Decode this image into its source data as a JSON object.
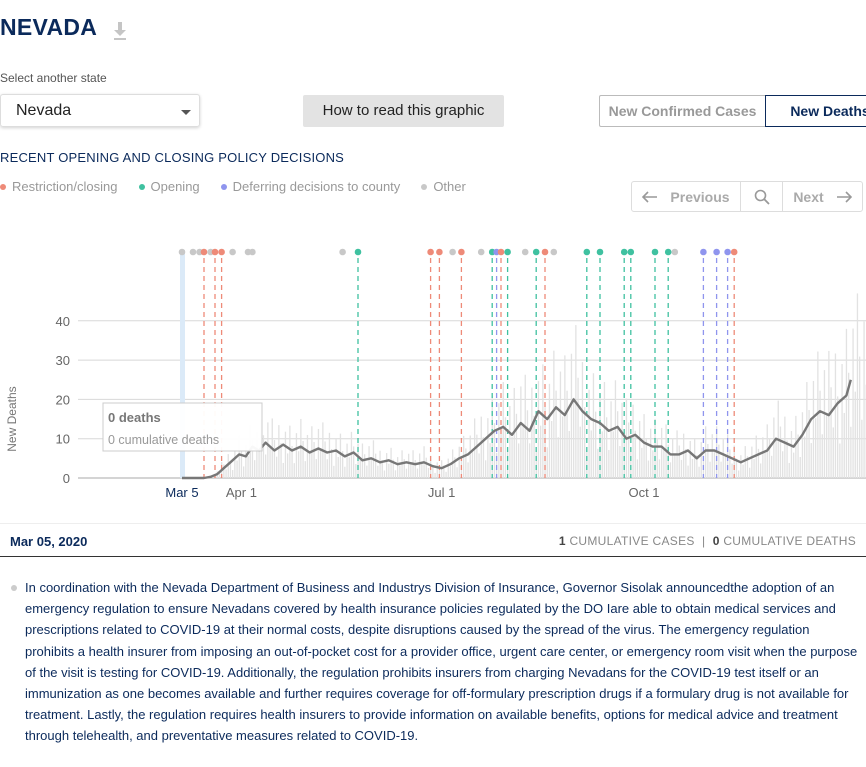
{
  "header": {
    "state_title": "NEVADA"
  },
  "selector": {
    "label": "Select another state",
    "value": "Nevada"
  },
  "how_to_button": "How to read this graphic",
  "toggle": {
    "cases_label": "New Confirmed Cases",
    "deaths_label": "New Deaths"
  },
  "section_title": "RECENT OPENING AND CLOSING POLICY DECISIONS",
  "legend": [
    {
      "label": "Restriction/closing",
      "color": "#ee8a78"
    },
    {
      "label": "Opening",
      "color": "#3fc1a0"
    },
    {
      "label": "Deferring decisions to county",
      "color": "#8f95ee"
    },
    {
      "label": "Other",
      "color": "#c8c8c8"
    }
  ],
  "nav": {
    "previous": "Previous",
    "next": "Next"
  },
  "tooltip": {
    "deaths": "0 deaths",
    "cumulative": "0 cumulative deaths"
  },
  "chart_data": {
    "type": "bar",
    "ylabel": "New Deaths",
    "ylim": [
      0,
      48
    ],
    "yticks": [
      0,
      10,
      20,
      30,
      40
    ],
    "xticks": [
      {
        "day": 0,
        "label": "Mar 5"
      },
      {
        "day": 27,
        "label": "Apr 1"
      },
      {
        "day": 118,
        "label": "Jul 1"
      },
      {
        "day": 210,
        "label": "Oct 1"
      }
    ],
    "start_date": "2020-03-05",
    "selected_day": 0,
    "avg_series": [
      {
        "day": 0,
        "v": 0
      },
      {
        "day": 10,
        "v": 0
      },
      {
        "day": 13,
        "v": 0.3
      },
      {
        "day": 16,
        "v": 1
      },
      {
        "day": 19,
        "v": 2.5
      },
      {
        "day": 22,
        "v": 4
      },
      {
        "day": 26,
        "v": 6
      },
      {
        "day": 29,
        "v": 5.5
      },
      {
        "day": 32,
        "v": 8
      },
      {
        "day": 35,
        "v": 7
      },
      {
        "day": 38,
        "v": 9
      },
      {
        "day": 42,
        "v": 7
      },
      {
        "day": 46,
        "v": 8.5
      },
      {
        "day": 50,
        "v": 7
      },
      {
        "day": 54,
        "v": 8
      },
      {
        "day": 58,
        "v": 6.5
      },
      {
        "day": 62,
        "v": 7.5
      },
      {
        "day": 66,
        "v": 6.5
      },
      {
        "day": 70,
        "v": 7
      },
      {
        "day": 74,
        "v": 5.5
      },
      {
        "day": 78,
        "v": 6.5
      },
      {
        "day": 82,
        "v": 4.5
      },
      {
        "day": 86,
        "v": 5
      },
      {
        "day": 90,
        "v": 4
      },
      {
        "day": 94,
        "v": 4.5
      },
      {
        "day": 98,
        "v": 3.5
      },
      {
        "day": 102,
        "v": 4
      },
      {
        "day": 106,
        "v": 3.5
      },
      {
        "day": 110,
        "v": 4
      },
      {
        "day": 114,
        "v": 3
      },
      {
        "day": 118,
        "v": 2.5
      },
      {
        "day": 122,
        "v": 3.5
      },
      {
        "day": 126,
        "v": 5
      },
      {
        "day": 130,
        "v": 6
      },
      {
        "day": 134,
        "v": 8
      },
      {
        "day": 138,
        "v": 10
      },
      {
        "day": 142,
        "v": 12
      },
      {
        "day": 146,
        "v": 13
      },
      {
        "day": 150,
        "v": 11
      },
      {
        "day": 154,
        "v": 14
      },
      {
        "day": 158,
        "v": 12
      },
      {
        "day": 162,
        "v": 17
      },
      {
        "day": 166,
        "v": 15
      },
      {
        "day": 170,
        "v": 18
      },
      {
        "day": 174,
        "v": 16
      },
      {
        "day": 178,
        "v": 20
      },
      {
        "day": 182,
        "v": 17
      },
      {
        "day": 186,
        "v": 15
      },
      {
        "day": 190,
        "v": 14
      },
      {
        "day": 194,
        "v": 12
      },
      {
        "day": 198,
        "v": 13
      },
      {
        "day": 202,
        "v": 10
      },
      {
        "day": 206,
        "v": 11
      },
      {
        "day": 210,
        "v": 9
      },
      {
        "day": 214,
        "v": 8
      },
      {
        "day": 218,
        "v": 8
      },
      {
        "day": 222,
        "v": 6
      },
      {
        "day": 226,
        "v": 6
      },
      {
        "day": 230,
        "v": 7
      },
      {
        "day": 234,
        "v": 5
      },
      {
        "day": 238,
        "v": 7
      },
      {
        "day": 242,
        "v": 7
      },
      {
        "day": 246,
        "v": 6
      },
      {
        "day": 250,
        "v": 5
      },
      {
        "day": 254,
        "v": 4
      },
      {
        "day": 258,
        "v": 5
      },
      {
        "day": 262,
        "v": 6
      },
      {
        "day": 266,
        "v": 7
      },
      {
        "day": 270,
        "v": 10
      },
      {
        "day": 274,
        "v": 9
      },
      {
        "day": 278,
        "v": 8
      },
      {
        "day": 282,
        "v": 11
      },
      {
        "day": 286,
        "v": 15
      },
      {
        "day": 290,
        "v": 17
      },
      {
        "day": 294,
        "v": 16
      },
      {
        "day": 298,
        "v": 19
      },
      {
        "day": 302,
        "v": 21
      },
      {
        "day": 304,
        "v": 25
      }
    ],
    "policy_markers": [
      {
        "day": 0,
        "type": "other"
      },
      {
        "day": 5,
        "type": "other"
      },
      {
        "day": 8,
        "type": "other"
      },
      {
        "day": 10,
        "type": "restriction"
      },
      {
        "day": 13,
        "type": "other"
      },
      {
        "day": 15,
        "type": "restriction"
      },
      {
        "day": 18,
        "type": "restriction"
      },
      {
        "day": 23,
        "type": "other"
      },
      {
        "day": 30,
        "type": "other"
      },
      {
        "day": 32,
        "type": "other"
      },
      {
        "day": 73,
        "type": "other"
      },
      {
        "day": 80,
        "type": "opening"
      },
      {
        "day": 113,
        "type": "restriction"
      },
      {
        "day": 117,
        "type": "restriction"
      },
      {
        "day": 123,
        "type": "other"
      },
      {
        "day": 127,
        "type": "restriction"
      },
      {
        "day": 136,
        "type": "other"
      },
      {
        "day": 141,
        "type": "opening"
      },
      {
        "day": 143,
        "type": "county"
      },
      {
        "day": 145,
        "type": "restriction"
      },
      {
        "day": 148,
        "type": "opening"
      },
      {
        "day": 156,
        "type": "other"
      },
      {
        "day": 161,
        "type": "opening"
      },
      {
        "day": 165,
        "type": "restriction"
      },
      {
        "day": 169,
        "type": "other"
      },
      {
        "day": 184,
        "type": "opening"
      },
      {
        "day": 190,
        "type": "opening"
      },
      {
        "day": 201,
        "type": "opening"
      },
      {
        "day": 204,
        "type": "opening"
      },
      {
        "day": 215,
        "type": "opening"
      },
      {
        "day": 221,
        "type": "opening"
      },
      {
        "day": 224,
        "type": "other"
      },
      {
        "day": 237,
        "type": "county"
      },
      {
        "day": 243,
        "type": "county"
      },
      {
        "day": 248,
        "type": "county"
      },
      {
        "day": 251,
        "type": "restriction"
      }
    ]
  },
  "info": {
    "date": "Mar 05, 2020",
    "cum_cases_num": "1",
    "cum_cases_label": " CUMULATIVE CASES",
    "sep": "|",
    "cum_deaths_num": "0",
    "cum_deaths_label": " CUMULATIVE DEATHS"
  },
  "description": "In coordination with the Nevada Department of Business and Industrys Division of Insurance, Governor Sisolak announcedthe adoption of an emergency regulation to ensure Nevadans covered by health insurance policies regulated by the DO Iare able to obtain medical services and prescriptions related to COVID-19 at their normal costs, despite disruptions caused by the spread of the virus. The emergency regulation prohibits a health insurer from imposing an out-of-pocket cost for a provider office, urgent care center, or emergency room visit when the purpose of the visit is testing for COVID-19. Additionally, the regulation prohibits insurers from charging Nevadans for the COVID-19 test itself or an immunization as one becomes available and further requires coverage for off-formulary prescription drugs if a formulary drug is not available for treatment. Lastly, the regulation requires health insurers to provide information on available benefits, options for medical advice and treatment through telehealth, and preventative measures related to COVID-19."
}
